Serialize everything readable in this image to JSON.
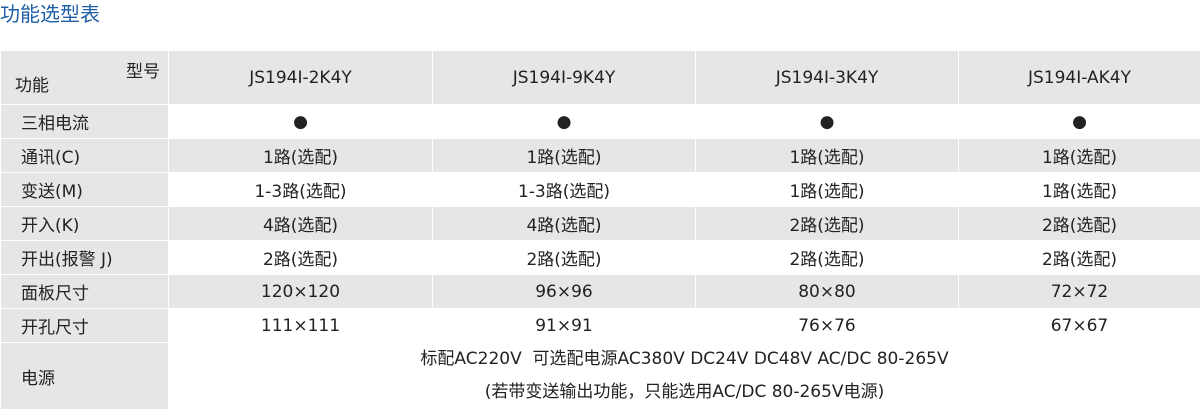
{
  "title": "功能选型表",
  "table": {
    "header": {
      "corner_top": "型号",
      "corner_bottom": "功能",
      "models": [
        "JS194I-2K4Y",
        "JS194I-9K4Y",
        "JS194I-3K4Y",
        "JS194I-AK4Y"
      ]
    },
    "rows": [
      {
        "label": "三相电流",
        "cells": [
          "●",
          "●",
          "●",
          "●"
        ]
      },
      {
        "label": "通讯(C)",
        "cells": [
          "1路(选配)",
          "1路(选配)",
          "1路(选配)",
          "1路(选配)"
        ]
      },
      {
        "label": "变送(M)",
        "cells": [
          "1-3路(选配)",
          "1-3路(选配)",
          "1路(选配)",
          "1路(选配)"
        ]
      },
      {
        "label": "开入(K)",
        "cells": [
          "4路(选配)",
          "4路(选配)",
          "2路(选配)",
          "2路(选配)"
        ]
      },
      {
        "label": "开出(报警 J)",
        "cells": [
          "2路(选配)",
          "2路(选配)",
          "2路(选配)",
          "2路(选配)"
        ]
      },
      {
        "label": "面板尺寸",
        "cells": [
          "120×120",
          "96×96",
          "80×80",
          "72×72"
        ]
      },
      {
        "label": "开孔尺寸",
        "cells": [
          "111×111",
          "91×91",
          "76×76",
          "67×67"
        ]
      }
    ],
    "power": {
      "label": "电源",
      "lines": [
        "标配AC220V  可选配电源AC380V DC24V DC48V AC/DC 80-265V",
        "(若带变送输出功能，只能选用AC/DC 80-265V电源)"
      ]
    }
  }
}
